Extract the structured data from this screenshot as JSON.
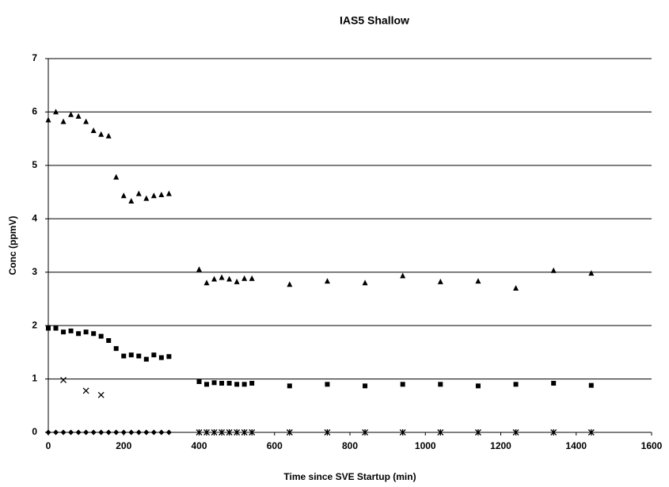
{
  "chart_data": {
    "type": "scatter",
    "title": "IAS5 Shallow",
    "x_label": "Time since SVE Startup (min)",
    "y_label": "Conc (ppmV)",
    "xlim": [
      0,
      1600
    ],
    "xticks": [
      0,
      200,
      400,
      600,
      800,
      1000,
      1200,
      1400,
      1600
    ],
    "ylim": [
      0,
      7
    ],
    "yticks": [
      0,
      1,
      2,
      3,
      4,
      5,
      6,
      7
    ],
    "grid": true,
    "series": [
      {
        "marker": "triangle",
        "color": "#000000",
        "x": [
          0,
          20,
          40,
          60,
          80,
          100,
          120,
          140,
          160,
          180,
          200,
          220,
          240,
          260,
          280,
          300,
          320,
          400,
          420,
          440,
          460,
          480,
          500,
          520,
          540,
          640,
          740,
          840,
          940,
          1040,
          1140,
          1240,
          1340,
          1440
        ],
        "values": [
          5.85,
          6.0,
          5.82,
          5.95,
          5.92,
          5.82,
          5.65,
          5.58,
          5.55,
          4.78,
          4.43,
          4.33,
          4.47,
          4.38,
          4.43,
          4.45,
          4.47,
          3.05,
          2.8,
          2.87,
          2.9,
          2.87,
          2.82,
          2.88,
          2.88,
          2.77,
          2.83,
          2.8,
          2.93,
          2.82,
          2.83,
          2.7,
          3.03,
          2.98
        ]
      },
      {
        "marker": "square",
        "color": "#000000",
        "x": [
          0,
          20,
          40,
          60,
          80,
          100,
          120,
          140,
          160,
          180,
          200,
          220,
          240,
          260,
          280,
          300,
          320,
          400,
          420,
          440,
          460,
          480,
          500,
          520,
          540,
          640,
          740,
          840,
          940,
          1040,
          1140,
          1240,
          1340,
          1440
        ],
        "values": [
          1.95,
          1.95,
          1.88,
          1.9,
          1.85,
          1.88,
          1.85,
          1.8,
          1.72,
          1.57,
          1.43,
          1.45,
          1.43,
          1.37,
          1.45,
          1.4,
          1.42,
          0.95,
          0.9,
          0.93,
          0.92,
          0.92,
          0.9,
          0.9,
          0.92,
          0.87,
          0.9,
          0.87,
          0.9,
          0.9,
          0.87,
          0.9,
          0.92,
          0.88
        ]
      },
      {
        "marker": "x",
        "color": "#000000",
        "x": [
          40,
          100,
          140
        ],
        "values": [
          0.98,
          0.78,
          0.7
        ]
      },
      {
        "marker": "diamond",
        "color": "#000000",
        "x": [
          0,
          20,
          40,
          60,
          80,
          100,
          120,
          140,
          160,
          180,
          200,
          220,
          240,
          260,
          280,
          300,
          320
        ],
        "values": [
          0,
          0,
          0,
          0,
          0,
          0,
          0,
          0,
          0,
          0,
          0,
          0,
          0,
          0,
          0,
          0,
          0
        ]
      },
      {
        "marker": "asterisk",
        "color": "#000000",
        "x": [
          400,
          420,
          440,
          460,
          480,
          500,
          520,
          540,
          640,
          740,
          840,
          940,
          1040,
          1140,
          1240,
          1340,
          1440
        ],
        "values": [
          0,
          0,
          0,
          0,
          0,
          0,
          0,
          0,
          0,
          0,
          0,
          0,
          0,
          0,
          0,
          0,
          0
        ]
      }
    ]
  }
}
